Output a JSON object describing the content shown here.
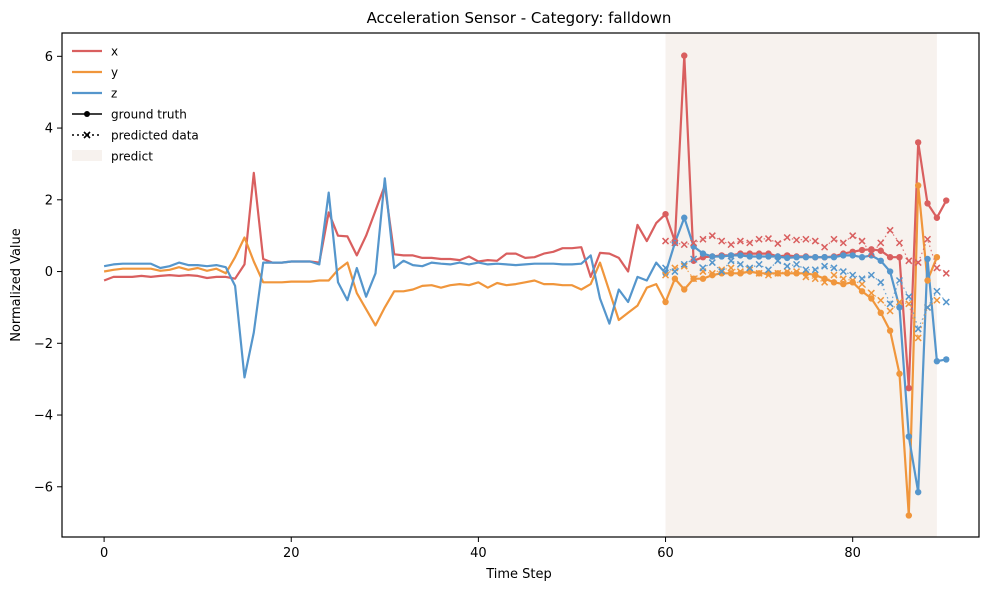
{
  "chart_data": {
    "type": "line",
    "title": "Acceleration Sensor - Category: falldown",
    "xlabel": "Time Step",
    "ylabel": "Normalized Value",
    "xlim": [
      -4.5,
      93.5
    ],
    "ylim": [
      -7.4,
      6.65
    ],
    "xticks": [
      0,
      20,
      40,
      60,
      80
    ],
    "yticks": [
      -6,
      -4,
      -2,
      0,
      2,
      4,
      6
    ],
    "grid": false,
    "legend_position": "top-left",
    "predict_region": {
      "label": "predict",
      "x_start": 60,
      "x_end": 89,
      "color": "#f7f2ee"
    },
    "legend": {
      "x": "x",
      "y": "y",
      "z": "z",
      "ground_truth": "ground truth",
      "predicted": "predicted data",
      "predict": "predict"
    },
    "series": [
      {
        "name": "x",
        "color": "#d95f5f",
        "x_start": 0,
        "values": [
          -0.25,
          -0.15,
          -0.15,
          -0.15,
          -0.12,
          -0.15,
          -0.12,
          -0.1,
          -0.12,
          -0.1,
          -0.12,
          -0.18,
          -0.15,
          -0.15,
          -0.2,
          0.2,
          2.75,
          0.35,
          0.25,
          0.25,
          0.28,
          0.28,
          0.28,
          0.25,
          1.65,
          1.0,
          0.98,
          0.45,
          1.0,
          1.7,
          2.4,
          0.48,
          0.45,
          0.45,
          0.38,
          0.38,
          0.35,
          0.35,
          0.32,
          0.42,
          0.28,
          0.32,
          0.3,
          0.5,
          0.5,
          0.38,
          0.4,
          0.5,
          0.55,
          0.65,
          0.65,
          0.68,
          -0.15,
          0.52,
          0.5,
          0.38,
          0.0,
          1.3,
          0.85,
          1.35,
          1.6,
          0.85,
          6.02,
          0.3,
          0.4,
          0.42,
          0.45,
          0.45,
          0.5,
          0.5,
          0.5,
          0.5,
          0.42,
          0.45,
          0.42,
          0.42,
          0.4,
          0.4,
          0.42,
          0.5,
          0.55,
          0.6,
          0.62,
          0.58,
          0.4,
          0.4,
          -3.25,
          3.6,
          1.9,
          1.5,
          1.98
        ]
      },
      {
        "name": "y",
        "color": "#f0963c",
        "x_start": 0,
        "values": [
          0.0,
          0.05,
          0.08,
          0.08,
          0.08,
          0.08,
          0.02,
          0.05,
          0.12,
          0.05,
          0.1,
          0.02,
          0.08,
          -0.05,
          0.4,
          0.95,
          0.28,
          -0.3,
          -0.3,
          -0.3,
          -0.28,
          -0.28,
          -0.28,
          -0.25,
          -0.25,
          0.05,
          0.25,
          -0.6,
          -1.05,
          -1.5,
          -1.0,
          -0.55,
          -0.55,
          -0.5,
          -0.4,
          -0.38,
          -0.45,
          -0.38,
          -0.35,
          -0.38,
          -0.3,
          -0.45,
          -0.32,
          -0.38,
          -0.35,
          -0.3,
          -0.25,
          -0.35,
          -0.35,
          -0.38,
          -0.38,
          -0.5,
          -0.35,
          0.25,
          -0.55,
          -1.35,
          -1.15,
          -0.95,
          -0.45,
          -0.35,
          -0.85,
          -0.2,
          -0.5,
          -0.2,
          -0.2,
          -0.1,
          -0.05,
          -0.05,
          -0.05,
          0.0,
          -0.05,
          -0.05,
          -0.05,
          -0.05,
          -0.05,
          -0.05,
          -0.1,
          -0.2,
          -0.3,
          -0.35,
          -0.3,
          -0.55,
          -0.75,
          -1.15,
          -1.65,
          -2.85,
          -6.8,
          2.4,
          -0.25,
          0.4
        ]
      },
      {
        "name": "z",
        "color": "#5596cc",
        "x_start": 0,
        "values": [
          0.15,
          0.2,
          0.22,
          0.22,
          0.22,
          0.22,
          0.1,
          0.15,
          0.25,
          0.18,
          0.18,
          0.15,
          0.18,
          0.12,
          -0.4,
          -2.95,
          -1.7,
          0.25,
          0.25,
          0.25,
          0.28,
          0.28,
          0.28,
          0.2,
          2.2,
          -0.3,
          -0.8,
          0.1,
          -0.7,
          -0.05,
          2.6,
          0.1,
          0.3,
          0.18,
          0.15,
          0.25,
          0.22,
          0.2,
          0.25,
          0.2,
          0.25,
          0.2,
          0.22,
          0.2,
          0.18,
          0.2,
          0.22,
          0.22,
          0.22,
          0.2,
          0.2,
          0.22,
          0.45,
          -0.75,
          -1.45,
          -0.5,
          -0.85,
          -0.15,
          -0.25,
          0.25,
          -0.05,
          0.8,
          1.5,
          0.7,
          0.5,
          0.42,
          0.42,
          0.45,
          0.45,
          0.42,
          0.42,
          0.42,
          0.42,
          0.38,
          0.4,
          0.4,
          0.4,
          0.4,
          0.4,
          0.45,
          0.45,
          0.4,
          0.45,
          0.3,
          0.0,
          -1.0,
          -4.6,
          -6.15,
          0.35,
          -2.5,
          -2.45
        ]
      }
    ],
    "predicted_series": [
      {
        "name": "x",
        "color": "#d95f5f",
        "x_start": 60,
        "values": [
          0.85,
          0.8,
          0.75,
          0.8,
          0.9,
          1.0,
          0.85,
          0.75,
          0.85,
          0.8,
          0.9,
          0.92,
          0.78,
          0.95,
          0.88,
          0.9,
          0.85,
          0.68,
          0.9,
          0.8,
          1.0,
          0.85,
          0.5,
          0.8,
          1.15,
          0.8,
          0.3,
          0.25,
          0.9,
          0.1,
          -0.05
        ]
      },
      {
        "name": "y",
        "color": "#f0963c",
        "x_start": 60,
        "values": [
          -0.1,
          0.1,
          0.15,
          -0.2,
          0.0,
          -0.05,
          0.05,
          0.1,
          0.0,
          0.05,
          -0.05,
          -0.1,
          -0.05,
          0.0,
          0.0,
          -0.15,
          -0.2,
          -0.3,
          -0.1,
          -0.2,
          -0.25,
          -0.35,
          -0.6,
          -0.8,
          -1.1,
          -0.85,
          -0.9,
          -1.85,
          -1.0,
          -0.8,
          null
        ]
      },
      {
        "name": "z",
        "color": "#5596cc",
        "x_start": 60,
        "values": [
          0.1,
          0.0,
          0.2,
          0.35,
          0.1,
          0.25,
          0.0,
          0.3,
          0.2,
          0.1,
          0.2,
          0.05,
          0.3,
          0.15,
          0.2,
          0.05,
          0.05,
          0.15,
          0.1,
          0.0,
          -0.1,
          -0.2,
          -0.1,
          -0.3,
          -0.9,
          -0.25,
          -0.7,
          -1.6,
          -1.0,
          -0.55,
          -0.85
        ]
      }
    ]
  }
}
